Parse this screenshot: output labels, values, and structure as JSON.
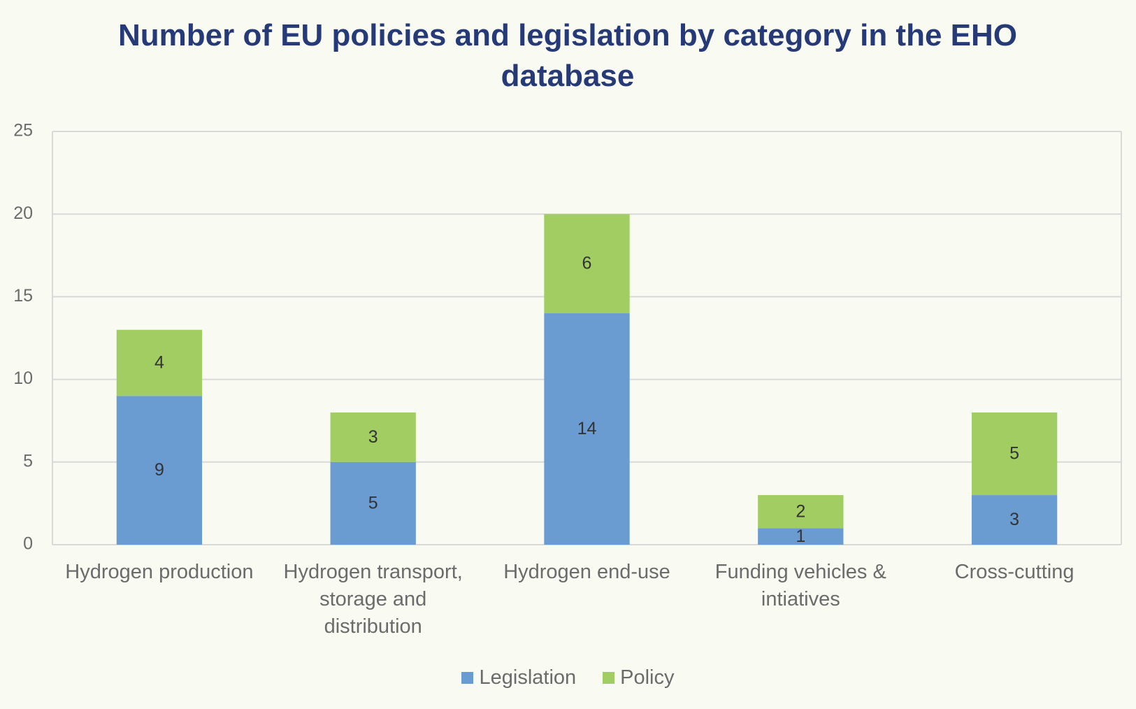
{
  "chart_data": {
    "type": "stacked_bar",
    "title": "Number of EU policies and legislation by category in the EHO database",
    "categories": [
      "Hydrogen production",
      "Hydrogen transport, storage and distribution",
      "Hydrogen end-use",
      "Funding vehicles & intiatives",
      "Cross-cutting"
    ],
    "series": [
      {
        "name": "Legislation",
        "color": "#6a9bd1",
        "values": [
          9,
          5,
          14,
          1,
          3
        ]
      },
      {
        "name": "Policy",
        "color": "#a1cd63",
        "values": [
          4,
          3,
          6,
          2,
          5
        ]
      }
    ],
    "ylim": [
      0,
      25
    ],
    "yticks": [
      0,
      5,
      10,
      15,
      20,
      25
    ],
    "grid": true
  }
}
